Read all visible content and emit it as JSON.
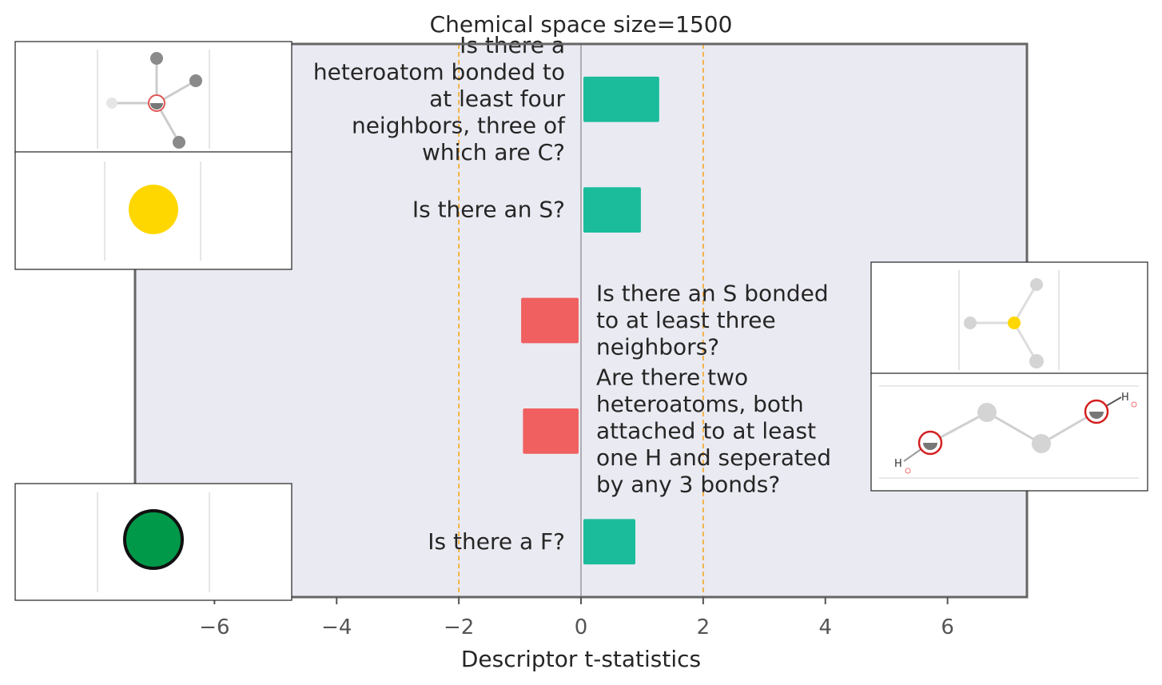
{
  "chart_data": {
    "type": "bar",
    "orientation": "horizontal",
    "title": "Chemical space size=1500",
    "xlabel": "Descriptor t-statistics",
    "ylabel": "",
    "xlim": [
      -7.3,
      7.3
    ],
    "xticks": [
      -6,
      -4,
      -2,
      0,
      2,
      4,
      6
    ],
    "xtick_labels": [
      "−6",
      "−4",
      "−2",
      "0",
      "2",
      "4",
      "6"
    ],
    "threshold_lines": [
      -2,
      2
    ],
    "grid": false,
    "bars": [
      {
        "label": [
          "Is there a",
          "heteroatom bonded to",
          "at least four",
          "neighbors, three of",
          "which are C?"
        ],
        "value": 1.28,
        "color": "#1abc9c"
      },
      {
        "label": [
          "Is there an S?"
        ],
        "value": 0.98,
        "color": "#1abc9c"
      },
      {
        "label": [
          "Is there an S bonded",
          "to at least three",
          "neighbors?"
        ],
        "value": -0.98,
        "color": "#f06060"
      },
      {
        "label": [
          "Are there two",
          "heteroatoms, both",
          "attached to at least",
          "one H and seperated",
          "by any 3 bonds?"
        ],
        "value": -0.95,
        "color": "#f06060"
      },
      {
        "label": [
          "Is there a F?"
        ],
        "value": 0.89,
        "color": "#1abc9c"
      }
    ]
  },
  "colors": {
    "plot_background": "#eaeaf2",
    "frame": "#666666",
    "threshold_line": "#f5a623",
    "zero_line": "#888888"
  },
  "insets": [
    {
      "depicts": "atom with four neighbors, central heteroatom highlighted",
      "for_bar": 0
    },
    {
      "depicts": "single yellow sulfur atom",
      "for_bar": 1
    },
    {
      "depicts": "sulfur atom with three neighbors",
      "for_bar": 2
    },
    {
      "depicts": "chain with two heteroatoms bearing H, separated by 3 bonds",
      "for_bar": 3,
      "atom_labels": [
        "H",
        "H"
      ]
    },
    {
      "depicts": "single green fluorine atom",
      "for_bar": 4
    }
  ]
}
